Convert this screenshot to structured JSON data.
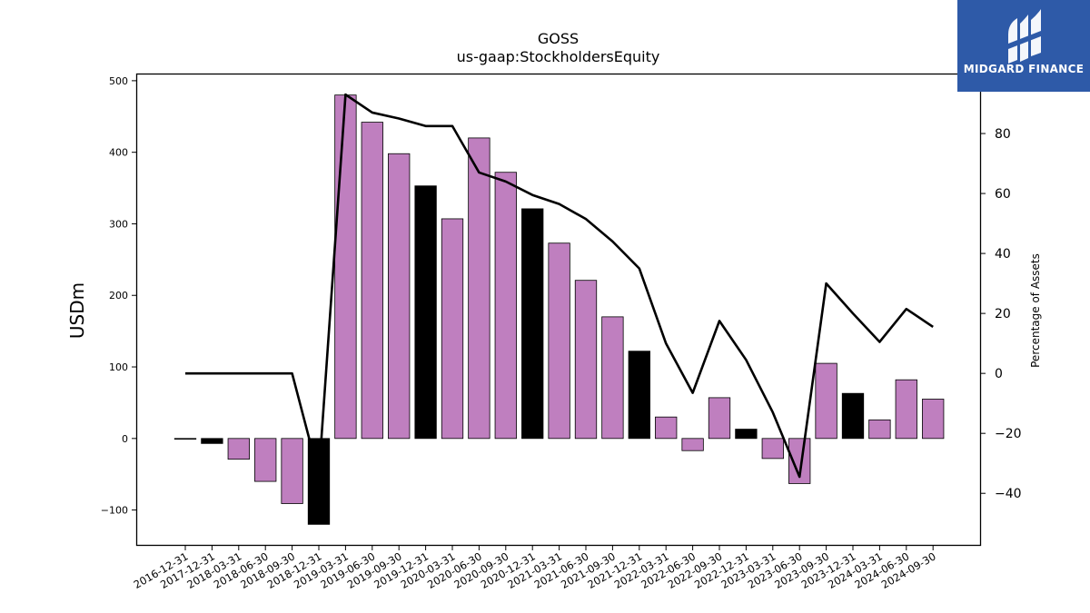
{
  "logo": {
    "text": "MIDGARD FINANCE",
    "icon": "midgard-logo-icon",
    "bg_color": "#2e5aa8"
  },
  "chart_data": {
    "type": "bar",
    "title": "GOSS",
    "subtitle": "us-gaap:StockholdersEquity",
    "ylabel": "USDm",
    "y2label": "Percentage of Assets",
    "ylim": [
      -150,
      510
    ],
    "y2lim": [
      -57.5,
      100
    ],
    "yticks": [
      -100,
      0,
      100,
      200,
      300,
      400,
      500
    ],
    "y2ticks": [
      -40,
      -20,
      0,
      20,
      40,
      60,
      80
    ],
    "categories": [
      "2016-12-31",
      "2017-12-31",
      "2018-03-31",
      "2018-06-30",
      "2018-09-30",
      "2018-12-31",
      "2019-03-31",
      "2019-06-30",
      "2019-09-30",
      "2019-12-31",
      "2020-03-31",
      "2020-06-30",
      "2020-09-30",
      "2020-12-31",
      "2021-03-31",
      "2021-06-30",
      "2021-09-30",
      "2021-12-31",
      "2022-03-31",
      "2022-06-30",
      "2022-09-30",
      "2022-12-31",
      "2023-03-31",
      "2023-06-30",
      "2023-09-30",
      "2023-12-31",
      "2024-03-31",
      "2024-06-30",
      "2024-09-30"
    ],
    "values": [
      -1,
      -7,
      -29,
      -60,
      -91,
      -120,
      480,
      442,
      398,
      353,
      307,
      420,
      372,
      321,
      273,
      221,
      170,
      122,
      30,
      -17,
      57,
      13,
      -28,
      -63,
      105,
      63,
      26,
      82,
      55
    ],
    "bar_colors": [
      "#000000",
      "#000000",
      "#bf7fbf",
      "#bf7fbf",
      "#bf7fbf",
      "#000000",
      "#bf7fbf",
      "#bf7fbf",
      "#bf7fbf",
      "#000000",
      "#bf7fbf",
      "#bf7fbf",
      "#bf7fbf",
      "#000000",
      "#bf7fbf",
      "#bf7fbf",
      "#bf7fbf",
      "#000000",
      "#bf7fbf",
      "#bf7fbf",
      "#bf7fbf",
      "#000000",
      "#bf7fbf",
      "#bf7fbf",
      "#bf7fbf",
      "#000000",
      "#bf7fbf",
      "#bf7fbf",
      "#bf7fbf"
    ],
    "line_values": [
      0,
      0,
      0,
      0,
      0,
      -34,
      93,
      87,
      85,
      82.5,
      82.5,
      67,
      64,
      59.5,
      56.5,
      51.5,
      44,
      35,
      10,
      -6.5,
      17.5,
      4.5,
      -13,
      -34.5,
      30,
      20,
      10.5,
      21.5,
      15.5
    ],
    "line_color": "#000000",
    "grid": false
  }
}
